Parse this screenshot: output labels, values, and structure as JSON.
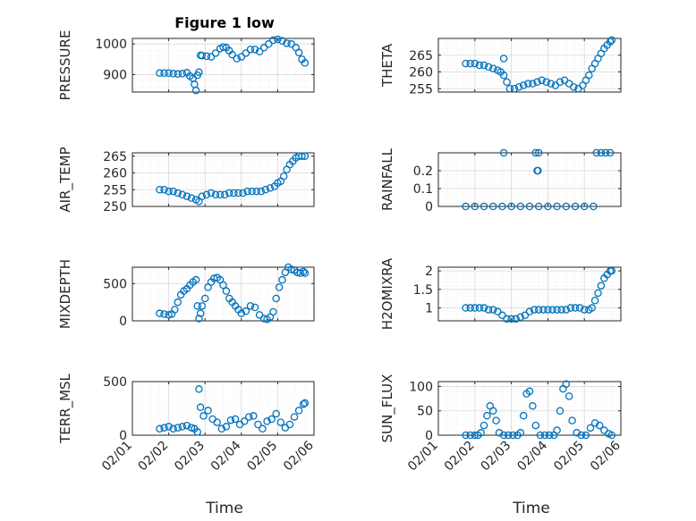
{
  "figure": {
    "title": "Figure 1 low",
    "xlabel": "Time"
  },
  "style": {
    "marker_color": "#0072BD",
    "grid_color": "#d9d9d9",
    "axis_color": "#262626"
  },
  "date_ticks": [
    "02/01",
    "02/02",
    "02/03",
    "02/04",
    "02/05",
    "02/06"
  ],
  "chart_data": [
    {
      "id": "pressure",
      "type": "scatter",
      "ylabel": "PRESSURE",
      "yticks": [
        "900",
        "1000"
      ],
      "ytick_values": [
        900,
        1000
      ],
      "ylim": [
        843,
        1018
      ],
      "xlim": [
        "02/01",
        "02/06"
      ],
      "series": [
        {
          "x": [
            "2024-02-01T18:00",
            "2024-02-01T21:00",
            "2024-02-02T00:00",
            "2024-02-02T03:00",
            "2024-02-02T06:00",
            "2024-02-02T09:00",
            "2024-02-02T12:00",
            "2024-02-02T14:00",
            "2024-02-02T16:00",
            "2024-02-02T17:00",
            "2024-02-02T18:00",
            "2024-02-02T19:00",
            "2024-02-02T20:00",
            "2024-02-02T21:00",
            "2024-02-02T22:00",
            "2024-02-03T01:00",
            "2024-02-03T04:00",
            "2024-02-03T07:00",
            "2024-02-03T10:00",
            "2024-02-03T12:00",
            "2024-02-03T14:00",
            "2024-02-03T16:00",
            "2024-02-03T18:00",
            "2024-02-03T21:00",
            "2024-02-04T00:00",
            "2024-02-04T03:00",
            "2024-02-04T06:00",
            "2024-02-04T09:00",
            "2024-02-04T12:00",
            "2024-02-04T15:00",
            "2024-02-04T18:00",
            "2024-02-04T21:00",
            "2024-02-05T00:00",
            "2024-02-05T03:00",
            "2024-02-05T06:00",
            "2024-02-05T09:00",
            "2024-02-05T12:00",
            "2024-02-05T14:00",
            "2024-02-05T16:00",
            "2024-02-05T18:00"
          ],
          "y": [
            905,
            905,
            905,
            903,
            902,
            903,
            906,
            895,
            888,
            868,
            848,
            898,
            908,
            963,
            962,
            960,
            958,
            970,
            985,
            990,
            988,
            978,
            965,
            952,
            958,
            970,
            982,
            982,
            975,
            988,
            1000,
            1012,
            1015,
            1010,
            1002,
            1000,
            988,
            972,
            950,
            938
          ]
        }
      ]
    },
    {
      "id": "theta",
      "type": "scatter",
      "ylabel": "THETA",
      "yticks": [
        "255",
        "260",
        "265"
      ],
      "ytick_values": [
        255,
        260,
        265
      ],
      "ylim": [
        254,
        270
      ],
      "xlim": [
        "02/01",
        "02/06"
      ],
      "series": [
        {
          "x": [
            "2024-02-01T18:00",
            "2024-02-01T21:00",
            "2024-02-02T00:00",
            "2024-02-02T03:00",
            "2024-02-02T06:00",
            "2024-02-02T09:00",
            "2024-02-02T12:00",
            "2024-02-02T15:00",
            "2024-02-02T17:00",
            "2024-02-02T19:00",
            "2024-02-02T21:00",
            "2024-02-02T23:00",
            "2024-02-03T02:00",
            "2024-02-03T05:00",
            "2024-02-03T08:00",
            "2024-02-03T11:00",
            "2024-02-03T14:00",
            "2024-02-03T17:00",
            "2024-02-03T20:00",
            "2024-02-03T23:00",
            "2024-02-04T02:00",
            "2024-02-04T05:00",
            "2024-02-04T08:00",
            "2024-02-04T11:00",
            "2024-02-04T14:00",
            "2024-02-04T17:00",
            "2024-02-04T20:00",
            "2024-02-04T23:00",
            "2024-02-05T01:00",
            "2024-02-05T03:00",
            "2024-02-05T05:00",
            "2024-02-05T07:00",
            "2024-02-05T09:00",
            "2024-02-05T11:00",
            "2024-02-05T13:00",
            "2024-02-05T15:00",
            "2024-02-05T17:00",
            "2024-02-05T18:00",
            "2024-02-02T19:00"
          ],
          "y": [
            262.5,
            262.5,
            262.5,
            262,
            262,
            261.5,
            261,
            260.5,
            260,
            259,
            257,
            255,
            255,
            255.5,
            256,
            256.5,
            256.5,
            257,
            257.5,
            257,
            256.5,
            256,
            257,
            257.5,
            256.5,
            255.5,
            255,
            256,
            257.5,
            259,
            261,
            262.5,
            264,
            265.5,
            267,
            268,
            269,
            269.5,
            264
          ]
        }
      ]
    },
    {
      "id": "air_temp",
      "type": "scatter",
      "ylabel": "AIR_TEMP",
      "yticks": [
        "250",
        "255",
        "260",
        "265"
      ],
      "ytick_values": [
        250,
        255,
        260,
        265
      ],
      "ylim": [
        250,
        266
      ],
      "xlim": [
        "02/01",
        "02/06"
      ],
      "series": [
        {
          "x": [
            "2024-02-01T18:00",
            "2024-02-01T21:00",
            "2024-02-02T00:00",
            "2024-02-02T03:00",
            "2024-02-02T06:00",
            "2024-02-02T09:00",
            "2024-02-02T12:00",
            "2024-02-02T15:00",
            "2024-02-02T18:00",
            "2024-02-02T20:00",
            "2024-02-02T22:00",
            "2024-02-03T01:00",
            "2024-02-03T04:00",
            "2024-02-03T07:00",
            "2024-02-03T10:00",
            "2024-02-03T13:00",
            "2024-02-03T16:00",
            "2024-02-03T19:00",
            "2024-02-03T22:00",
            "2024-02-04T01:00",
            "2024-02-04T04:00",
            "2024-02-04T07:00",
            "2024-02-04T10:00",
            "2024-02-04T13:00",
            "2024-02-04T16:00",
            "2024-02-04T19:00",
            "2024-02-04T22:00",
            "2024-02-05T00:00",
            "2024-02-05T02:00",
            "2024-02-05T04:00",
            "2024-02-05T06:00",
            "2024-02-05T08:00",
            "2024-02-05T10:00",
            "2024-02-05T12:00",
            "2024-02-05T14:00",
            "2024-02-05T16:00",
            "2024-02-05T18:00"
          ],
          "y": [
            255,
            255,
            254.5,
            254.5,
            254,
            253.5,
            253,
            252.5,
            252,
            251.5,
            253,
            253.5,
            254,
            253.5,
            253.5,
            253.5,
            254,
            254,
            254,
            254,
            254.5,
            254.5,
            254.5,
            254.5,
            255,
            255.5,
            256,
            257,
            257.5,
            259,
            261,
            262.5,
            263.5,
            264.5,
            265,
            265,
            265
          ]
        }
      ]
    },
    {
      "id": "rainfall",
      "type": "scatter",
      "ylabel": "RAINFALL",
      "yticks": [
        "0",
        "0.1",
        "0.2"
      ],
      "ytick_values": [
        0,
        0.1,
        0.2
      ],
      "ylim": [
        0,
        0.3
      ],
      "xlim": [
        "02/01",
        "02/06"
      ],
      "series": [
        {
          "x": [
            "2024-02-01T18:00",
            "2024-02-02T00:00",
            "2024-02-02T06:00",
            "2024-02-02T12:00",
            "2024-02-02T18:00",
            "2024-02-03T00:00",
            "2024-02-03T06:00",
            "2024-02-03T12:00",
            "2024-02-03T18:00",
            "2024-02-04T00:00",
            "2024-02-04T06:00",
            "2024-02-04T12:00",
            "2024-02-04T18:00",
            "2024-02-05T00:00",
            "2024-02-05T06:00",
            "2024-02-02T19:00",
            "2024-02-03T16:00",
            "2024-02-03T17:00",
            "2024-02-03T17:30",
            "2024-02-03T18:00",
            "2024-02-05T08:00",
            "2024-02-05T11:00",
            "2024-02-05T14:00",
            "2024-02-05T17:00"
          ],
          "y": [
            0,
            0,
            0,
            0,
            0,
            0,
            0,
            0,
            0,
            0,
            0,
            0,
            0,
            0,
            0,
            0.3,
            0.3,
            0.2,
            0.2,
            0.3,
            0.3,
            0.3,
            0.3,
            0.3
          ]
        }
      ]
    },
    {
      "id": "mixdepth",
      "type": "scatter",
      "ylabel": "MIXDEPTH",
      "yticks": [
        "0",
        "500"
      ],
      "ytick_values": [
        0,
        500
      ],
      "ylim": [
        0,
        720
      ],
      "xlim": [
        "02/01",
        "02/06"
      ],
      "series": [
        {
          "x": [
            "2024-02-01T18:00",
            "2024-02-01T21:00",
            "2024-02-02T00:00",
            "2024-02-02T02:00",
            "2024-02-02T04:00",
            "2024-02-02T06:00",
            "2024-02-02T08:00",
            "2024-02-02T10:00",
            "2024-02-02T12:00",
            "2024-02-02T14:00",
            "2024-02-02T16:00",
            "2024-02-02T18:00",
            "2024-02-02T19:00",
            "2024-02-02T20:00",
            "2024-02-02T21:00",
            "2024-02-02T22:00",
            "2024-02-03T00:00",
            "2024-02-03T02:00",
            "2024-02-03T04:00",
            "2024-02-03T06:00",
            "2024-02-03T08:00",
            "2024-02-03T10:00",
            "2024-02-03T12:00",
            "2024-02-03T14:00",
            "2024-02-03T16:00",
            "2024-02-03T18:00",
            "2024-02-03T20:00",
            "2024-02-03T22:00",
            "2024-02-04T00:00",
            "2024-02-04T03:00",
            "2024-02-04T06:00",
            "2024-02-04T09:00",
            "2024-02-04T12:00",
            "2024-02-04T15:00",
            "2024-02-04T17:00",
            "2024-02-04T19:00",
            "2024-02-04T21:00",
            "2024-02-04T23:00",
            "2024-02-05T01:00",
            "2024-02-05T03:00",
            "2024-02-05T05:00",
            "2024-02-05T07:00",
            "2024-02-05T09:00",
            "2024-02-05T11:00",
            "2024-02-05T13:00",
            "2024-02-05T15:00",
            "2024-02-05T17:00",
            "2024-02-05T18:00"
          ],
          "y": [
            100,
            90,
            80,
            90,
            150,
            250,
            350,
            400,
            430,
            480,
            520,
            550,
            200,
            30,
            100,
            200,
            300,
            450,
            520,
            570,
            580,
            550,
            480,
            400,
            300,
            250,
            200,
            150,
            100,
            130,
            200,
            180,
            80,
            30,
            20,
            50,
            120,
            300,
            450,
            550,
            650,
            720,
            690,
            680,
            650,
            640,
            660,
            640
          ]
        }
      ]
    },
    {
      "id": "h2omixra",
      "type": "scatter",
      "ylabel": "H2OMIXRA",
      "yticks": [
        "1",
        "1.5",
        "2"
      ],
      "ytick_values": [
        1,
        1.5,
        2
      ],
      "ylim": [
        0.65,
        2.1
      ],
      "xlim": [
        "02/01",
        "02/06"
      ],
      "series": [
        {
          "x": [
            "2024-02-01T18:00",
            "2024-02-01T21:00",
            "2024-02-02T00:00",
            "2024-02-02T03:00",
            "2024-02-02T06:00",
            "2024-02-02T09:00",
            "2024-02-02T12:00",
            "2024-02-02T15:00",
            "2024-02-02T18:00",
            "2024-02-02T21:00",
            "2024-02-03T00:00",
            "2024-02-03T03:00",
            "2024-02-03T06:00",
            "2024-02-03T09:00",
            "2024-02-03T12:00",
            "2024-02-03T15:00",
            "2024-02-03T18:00",
            "2024-02-03T21:00",
            "2024-02-04T00:00",
            "2024-02-04T03:00",
            "2024-02-04T06:00",
            "2024-02-04T09:00",
            "2024-02-04T12:00",
            "2024-02-04T15:00",
            "2024-02-04T18:00",
            "2024-02-04T21:00",
            "2024-02-05T00:00",
            "2024-02-05T03:00",
            "2024-02-05T05:00",
            "2024-02-05T07:00",
            "2024-02-05T09:00",
            "2024-02-05T11:00",
            "2024-02-05T13:00",
            "2024-02-05T15:00",
            "2024-02-05T17:00",
            "2024-02-05T18:00"
          ],
          "y": [
            1,
            1,
            1,
            1,
            1,
            0.95,
            0.95,
            0.9,
            0.8,
            0.7,
            0.7,
            0.7,
            0.75,
            0.8,
            0.9,
            0.95,
            0.95,
            0.95,
            0.95,
            0.95,
            0.95,
            0.95,
            0.95,
            1,
            1,
            1,
            0.95,
            0.95,
            1,
            1.2,
            1.4,
            1.6,
            1.8,
            1.9,
            2,
            2
          ]
        }
      ]
    },
    {
      "id": "terr_msl",
      "type": "scatter",
      "ylabel": "TERR_MSL",
      "yticks": [
        "0",
        "500"
      ],
      "ytick_values": [
        0,
        500
      ],
      "ylim": [
        0,
        500
      ],
      "xlim": [
        "02/01",
        "02/06"
      ],
      "series": [
        {
          "x": [
            "2024-02-01T18:00",
            "2024-02-01T21:00",
            "2024-02-02T00:00",
            "2024-02-02T03:00",
            "2024-02-02T06:00",
            "2024-02-02T09:00",
            "2024-02-02T12:00",
            "2024-02-02T15:00",
            "2024-02-02T17:00",
            "2024-02-02T19:00",
            "2024-02-02T20:00",
            "2024-02-02T21:00",
            "2024-02-02T23:00",
            "2024-02-03T02:00",
            "2024-02-03T05:00",
            "2024-02-03T08:00",
            "2024-02-03T11:00",
            "2024-02-03T14:00",
            "2024-02-03T17:00",
            "2024-02-03T20:00",
            "2024-02-03T23:00",
            "2024-02-04T02:00",
            "2024-02-04T05:00",
            "2024-02-04T08:00",
            "2024-02-04T11:00",
            "2024-02-04T14:00",
            "2024-02-04T17:00",
            "2024-02-04T20:00",
            "2024-02-04T23:00",
            "2024-02-05T02:00",
            "2024-02-05T05:00",
            "2024-02-05T08:00",
            "2024-02-05T11:00",
            "2024-02-05T14:00",
            "2024-02-05T17:00",
            "2024-02-05T18:00"
          ],
          "y": [
            60,
            70,
            80,
            60,
            70,
            80,
            90,
            70,
            60,
            30,
            430,
            260,
            180,
            230,
            150,
            120,
            60,
            80,
            140,
            150,
            100,
            130,
            170,
            180,
            100,
            60,
            130,
            150,
            200,
            120,
            70,
            100,
            170,
            230,
            290,
            300
          ]
        }
      ]
    },
    {
      "id": "sun_flux",
      "type": "scatter",
      "ylabel": "SUN_FLUX",
      "yticks": [
        "0",
        "50",
        "100"
      ],
      "ytick_values": [
        0,
        50,
        100
      ],
      "ylim": [
        0,
        110
      ],
      "xlim": [
        "02/01",
        "02/06"
      ],
      "series": [
        {
          "x": [
            "2024-02-01T18:00",
            "2024-02-01T21:00",
            "2024-02-02T00:00",
            "2024-02-02T02:00",
            "2024-02-02T04:00",
            "2024-02-02T06:00",
            "2024-02-02T08:00",
            "2024-02-02T10:00",
            "2024-02-02T12:00",
            "2024-02-02T14:00",
            "2024-02-02T16:00",
            "2024-02-02T19:00",
            "2024-02-02T22:00",
            "2024-02-03T01:00",
            "2024-02-03T04:00",
            "2024-02-03T06:00",
            "2024-02-03T08:00",
            "2024-02-03T10:00",
            "2024-02-03T12:00",
            "2024-02-03T14:00",
            "2024-02-03T16:00",
            "2024-02-03T19:00",
            "2024-02-03T22:00",
            "2024-02-04T01:00",
            "2024-02-04T04:00",
            "2024-02-04T06:00",
            "2024-02-04T08:00",
            "2024-02-04T10:00",
            "2024-02-04T12:00",
            "2024-02-04T14:00",
            "2024-02-04T16:00",
            "2024-02-04T19:00",
            "2024-02-04T22:00",
            "2024-02-05T01:00",
            "2024-02-05T04:00",
            "2024-02-05T07:00",
            "2024-02-05T10:00",
            "2024-02-05T13:00",
            "2024-02-05T16:00",
            "2024-02-05T18:00"
          ],
          "y": [
            0,
            0,
            0,
            0,
            5,
            20,
            40,
            60,
            50,
            30,
            5,
            0,
            0,
            0,
            0,
            5,
            40,
            85,
            90,
            60,
            20,
            0,
            0,
            0,
            0,
            10,
            50,
            95,
            105,
            80,
            30,
            5,
            0,
            0,
            15,
            25,
            20,
            10,
            3,
            0
          ]
        }
      ]
    }
  ]
}
